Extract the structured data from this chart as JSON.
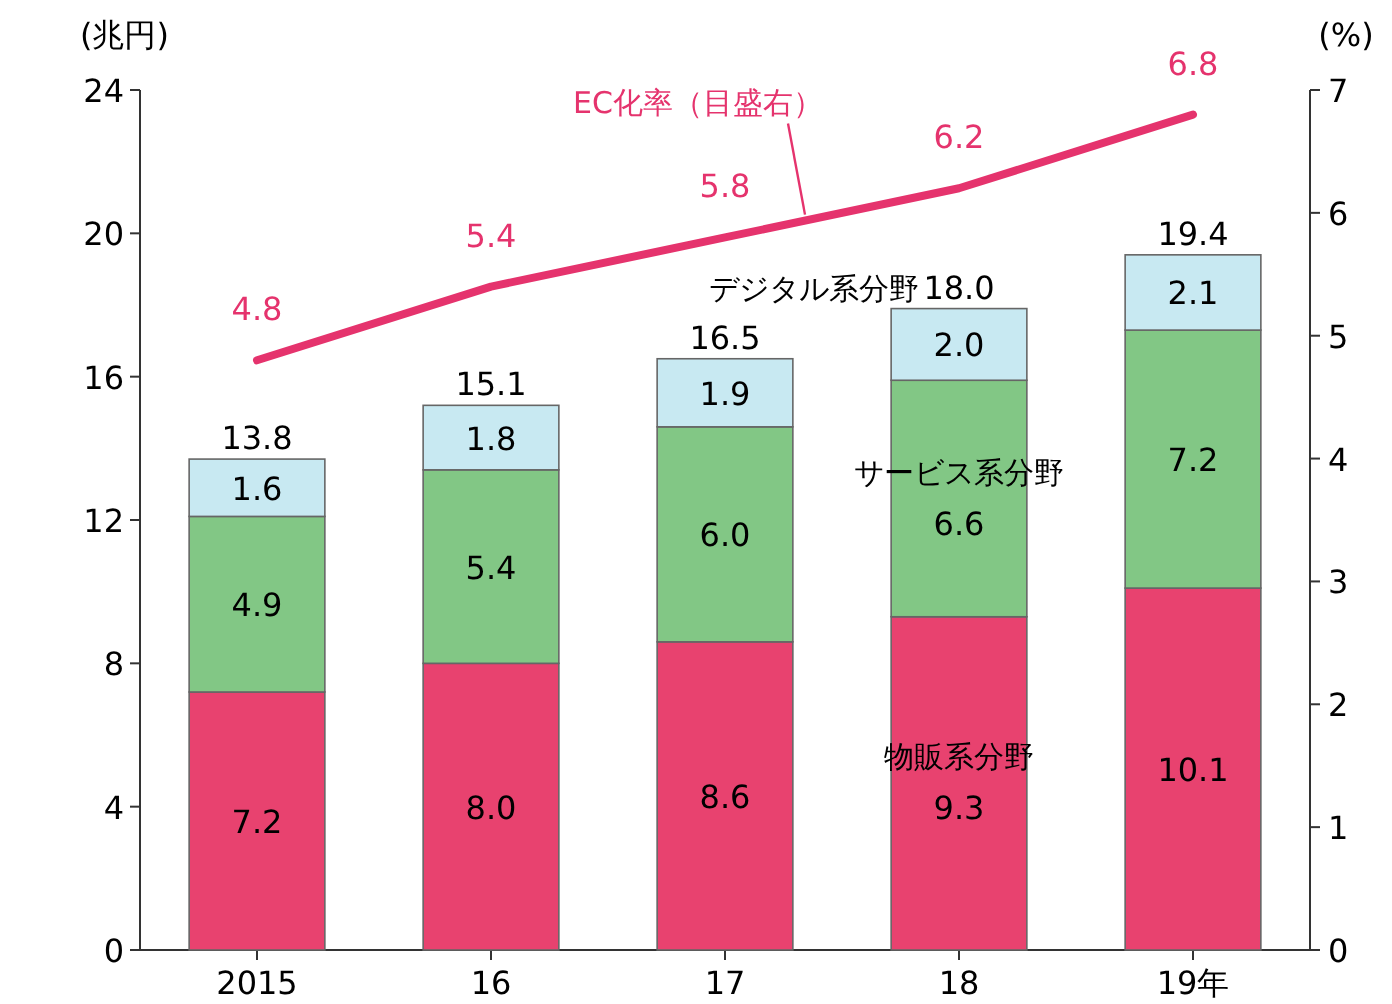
{
  "chart_data": {
    "type": "bar",
    "stacked": true,
    "ylabel": "(兆円)",
    "y2label": "(%)",
    "categories": [
      "2015",
      "16",
      "17",
      "18",
      "19年"
    ],
    "series": [
      {
        "name": "物販系分野",
        "color": "#e8426f",
        "values": [
          7.2,
          8.0,
          8.6,
          9.3,
          10.1
        ],
        "value_labels": [
          "7.2",
          "8.0",
          "8.6",
          "9.3",
          "10.1"
        ]
      },
      {
        "name": "サービス系分野",
        "color": "#82c785",
        "values": [
          4.9,
          5.4,
          6.0,
          6.6,
          7.2
        ],
        "value_labels": [
          "4.9",
          "5.4",
          "6.0",
          "6.6",
          "7.2"
        ]
      },
      {
        "name": "デジタル系分野",
        "color": "#c8e9f2",
        "values": [
          1.6,
          1.8,
          1.9,
          2.0,
          2.1
        ],
        "value_labels": [
          "1.6",
          "1.8",
          "1.9",
          "2.0",
          "2.1"
        ]
      },
      {
        "name": "EC化率（目盛右）",
        "type": "line",
        "axis": "y2",
        "color": "#e5336d",
        "values": [
          4.8,
          5.4,
          5.8,
          6.2,
          6.8
        ],
        "value_labels": [
          "4.8",
          "5.4",
          "5.8",
          "6.2",
          "6.8"
        ]
      }
    ],
    "totals": [
      "13.8",
      "15.1",
      "16.5",
      "18.0",
      "19.4"
    ],
    "ylim": [
      0,
      24
    ],
    "yticks": [
      0,
      4,
      8,
      12,
      16,
      20,
      24
    ],
    "y2lim": [
      0,
      7
    ],
    "y2ticks": [
      0,
      1,
      2,
      3,
      4,
      5,
      6,
      7
    ]
  }
}
